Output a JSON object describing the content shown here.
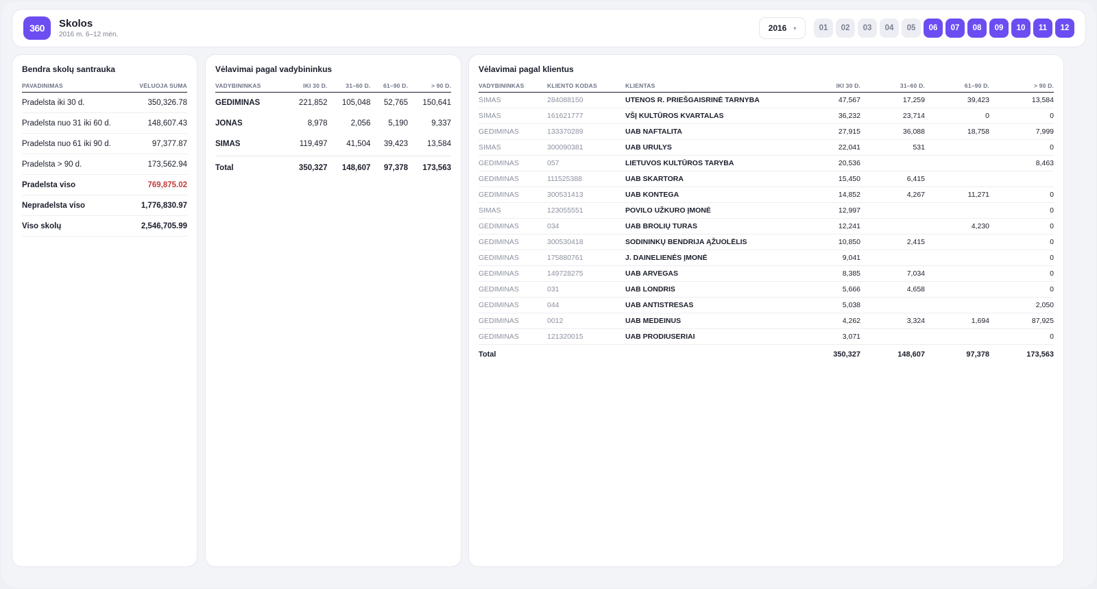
{
  "header": {
    "logo_text": "360",
    "title": "Skolos",
    "subtitle": "2016 m. 6–12 mėn.",
    "year": "2016",
    "months": [
      {
        "label": "01",
        "active": false
      },
      {
        "label": "02",
        "active": false
      },
      {
        "label": "03",
        "active": false
      },
      {
        "label": "04",
        "active": false
      },
      {
        "label": "05",
        "active": false
      },
      {
        "label": "06",
        "active": true
      },
      {
        "label": "07",
        "active": true
      },
      {
        "label": "08",
        "active": true
      },
      {
        "label": "09",
        "active": true
      },
      {
        "label": "10",
        "active": true
      },
      {
        "label": "11",
        "active": true
      },
      {
        "label": "12",
        "active": true
      }
    ],
    "accent": "#6b4df2"
  },
  "summary": {
    "title": "Bendra skolų santrauka",
    "columns": [
      "PAVADINIMAS",
      "VĖLUOJA SUMA"
    ],
    "rows": [
      {
        "name": "Pradelsta iki 30 d.",
        "value": "350,326.78",
        "style": ""
      },
      {
        "name": "Pradelsta nuo 31 iki 60 d.",
        "value": "148,607.43",
        "style": ""
      },
      {
        "name": "Pradelsta nuo 61 iki 90 d.",
        "value": "97,377.87",
        "style": ""
      },
      {
        "name": "Pradelsta > 90 d.",
        "value": "173,562.94",
        "style": ""
      },
      {
        "name": "Pradelsta viso",
        "value": "769,875.02",
        "style": "red"
      },
      {
        "name": "Nepradelsta viso",
        "value": "1,776,830.97",
        "style": "bold"
      },
      {
        "name": "Viso skolų",
        "value": "2,546,705.99",
        "style": "bold"
      }
    ]
  },
  "managers": {
    "title": "Vėlavimai pagal vadybininkus",
    "columns": [
      "VADYBININKAS",
      "IKI 30 D.",
      "31–60 D.",
      "61–90 D.",
      "> 90 D."
    ],
    "rows": [
      [
        "GEDIMINAS",
        "221,852",
        "105,048",
        "52,765",
        "150,641"
      ],
      [
        "JONAS",
        "8,978",
        "2,056",
        "5,190",
        "9,337"
      ],
      [
        "SIMAS",
        "119,497",
        "41,504",
        "39,423",
        "13,584"
      ]
    ],
    "total": [
      "Total",
      "350,327",
      "148,607",
      "97,378",
      "173,563"
    ]
  },
  "clients": {
    "title": "Vėlavimai pagal klientus",
    "columns": [
      "VADYBININKAS",
      "KLIENTO KODAS",
      "KLIENTAS",
      "IKI 30 D.",
      "31–60 D.",
      "61–90 D.",
      "> 90 D."
    ],
    "rows": [
      [
        "SIMAS",
        "284088150",
        "UTENOS R. PRIEŠGAISRINĖ TARNYBA",
        "47,567",
        "17,259",
        "39,423",
        "13,584"
      ],
      [
        "SIMAS",
        "161621777",
        "VŠĮ KULTŪROS KVARTALAS",
        "36,232",
        "23,714",
        "0",
        "0"
      ],
      [
        "GEDIMINAS",
        "133370289",
        "UAB NAFTALITA",
        "27,915",
        "36,088",
        "18,758",
        "7,999"
      ],
      [
        "SIMAS",
        "300090381",
        "UAB URULYS",
        "22,041",
        "531",
        "",
        "0"
      ],
      [
        "GEDIMINAS",
        "057",
        "LIETUVOS KULTŪROS TARYBA",
        "20,536",
        "",
        "",
        "8,463"
      ],
      [
        "GEDIMINAS",
        "111525388",
        "UAB SKARTORA",
        "15,450",
        "6,415",
        "",
        ""
      ],
      [
        "GEDIMINAS",
        "300531413",
        "UAB KONTEGA",
        "14,852",
        "4,267",
        "11,271",
        "0"
      ],
      [
        "SIMAS",
        "123055551",
        "POVILO UŽKURO ĮMONĖ",
        "12,997",
        "",
        "",
        "0"
      ],
      [
        "GEDIMINAS",
        "034",
        "UAB BROLIŲ TURAS",
        "12,241",
        "",
        "4,230",
        "0"
      ],
      [
        "GEDIMINAS",
        "300530418",
        "SODININKŲ BENDRIJA ĄŽUOLĖLIS",
        "10,850",
        "2,415",
        "",
        "0"
      ],
      [
        "GEDIMINAS",
        "175880761",
        "J. DAINELIENĖS ĮMONĖ",
        "9,041",
        "",
        "",
        "0"
      ],
      [
        "GEDIMINAS",
        "149728275",
        "UAB ARVEGAS",
        "8,385",
        "7,034",
        "",
        "0"
      ],
      [
        "GEDIMINAS",
        "031",
        "UAB LONDRIS",
        "5,666",
        "4,658",
        "",
        "0"
      ],
      [
        "GEDIMINAS",
        "044",
        "UAB ANTISTRESAS",
        "5,038",
        "",
        "",
        "2,050"
      ],
      [
        "GEDIMINAS",
        "0012",
        "UAB MEDEINUS",
        "4,262",
        "3,324",
        "1,694",
        "87,925"
      ],
      [
        "GEDIMINAS",
        "121320015",
        "UAB PRODIUSERIAI",
        "3,071",
        "",
        "",
        "0"
      ]
    ],
    "total": [
      "Total",
      "",
      "",
      "350,327",
      "148,607",
      "97,378",
      "173,563"
    ]
  }
}
